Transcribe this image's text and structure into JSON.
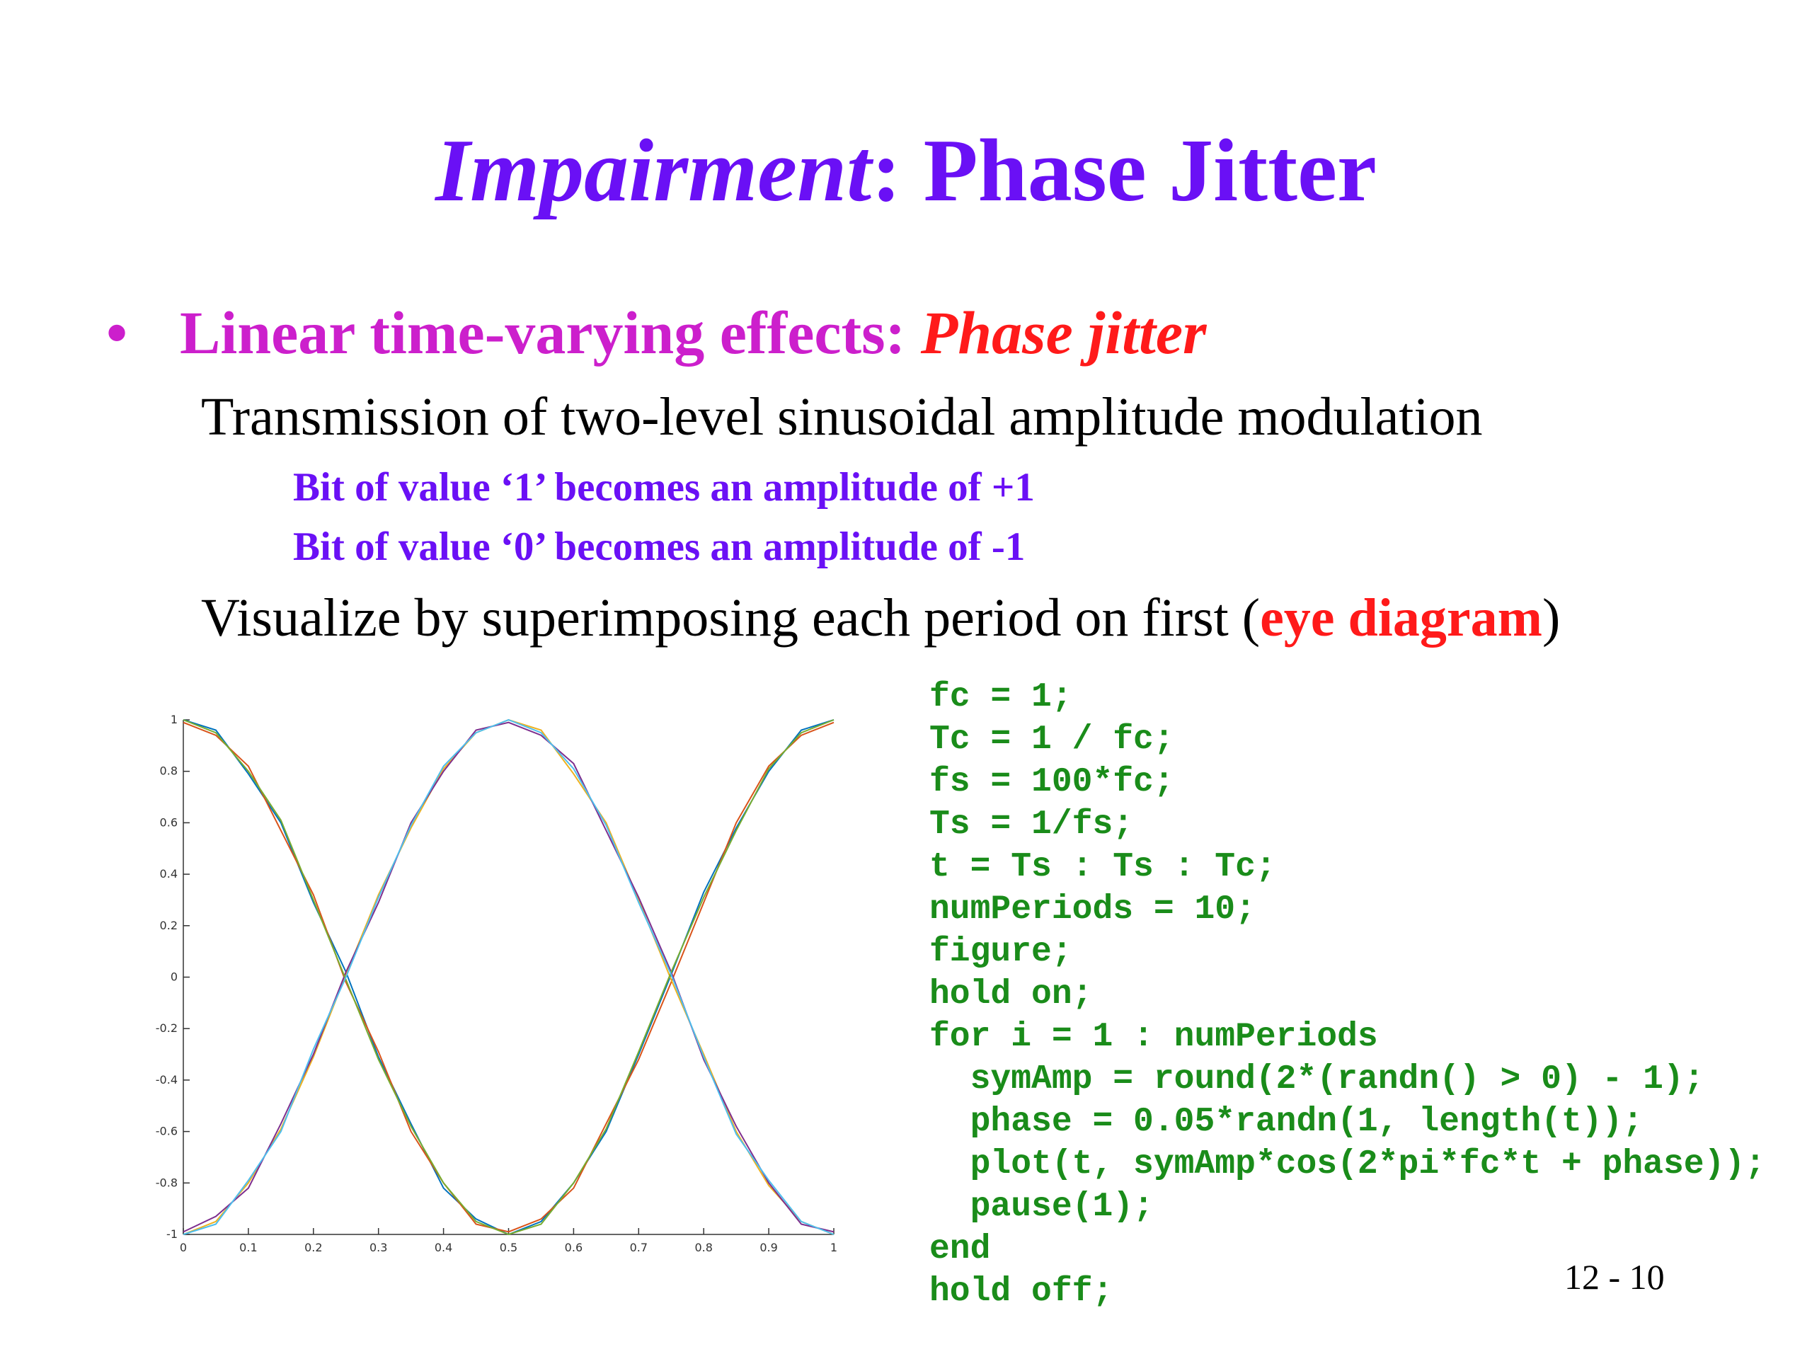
{
  "slide": {
    "title": {
      "italic": "Impairment",
      "rest": ": Phase Jitter"
    },
    "bullet": {
      "marker": "•",
      "text": "Linear time-varying effects: ",
      "emphasis": "Phase jitter"
    },
    "line1": "Transmission of two-level sinusoidal amplitude modulation",
    "sub1": "Bit of value ‘1’ becomes an amplitude of +1",
    "sub2": "Bit of value ‘0’ becomes an amplitude of -1",
    "line2": {
      "before": "Visualize by superimposing each period on first (",
      "emphasis": "eye diagram",
      "after": ")"
    },
    "code": [
      "fc = 1;",
      "Tc = 1 / fc;",
      "fs = 100*fc;",
      "Ts = 1/fs;",
      "t = Ts : Ts : Tc;",
      "numPeriods = 10;",
      "figure;",
      "hold on;",
      "for i = 1 : numPeriods",
      "  symAmp = round(2*(randn() > 0) - 1);",
      "  phase = 0.05*randn(1, length(t));",
      "  plot(t, symAmp*cos(2*pi*fc*t + phase));",
      "  pause(1);",
      "end",
      "hold off;"
    ],
    "page_number": "12 - 10"
  },
  "chart_data": {
    "type": "line",
    "x": [
      0,
      0.05,
      0.1,
      0.15,
      0.2,
      0.25,
      0.3,
      0.35,
      0.4,
      0.45,
      0.5,
      0.55,
      0.6,
      0.65,
      0.7,
      0.75,
      0.8,
      0.85,
      0.9,
      0.95,
      1
    ],
    "series": [
      {
        "color": "#0072bd",
        "values": [
          1,
          0.96,
          0.79,
          0.6,
          0.29,
          0.02,
          -0.31,
          -0.57,
          -0.82,
          -0.94,
          -1,
          -0.95,
          -0.8,
          -0.6,
          -0.3,
          0.01,
          0.33,
          0.58,
          0.8,
          0.96,
          1
        ]
      },
      {
        "color": "#d95319",
        "values": [
          0.99,
          0.94,
          0.82,
          0.57,
          0.32,
          -0.02,
          -0.29,
          -0.6,
          -0.8,
          -0.96,
          -0.99,
          -0.94,
          -0.82,
          -0.57,
          -0.32,
          -0.02,
          0.29,
          0.6,
          0.82,
          0.94,
          0.99
        ]
      },
      {
        "color": "#edb120",
        "values": [
          -1,
          -0.95,
          -0.8,
          -0.59,
          -0.31,
          0.01,
          0.32,
          0.58,
          0.81,
          0.95,
          1,
          0.96,
          0.79,
          0.6,
          0.3,
          -0.01,
          -0.3,
          -0.6,
          -0.81,
          -0.95,
          -1
        ]
      },
      {
        "color": "#7e2f8e",
        "values": [
          -0.99,
          -0.93,
          -0.82,
          -0.57,
          -0.3,
          0.02,
          0.29,
          0.6,
          0.8,
          0.96,
          0.99,
          0.94,
          0.83,
          0.57,
          0.31,
          0.02,
          -0.32,
          -0.58,
          -0.8,
          -0.96,
          -0.99
        ]
      },
      {
        "color": "#77ac30",
        "values": [
          1,
          0.95,
          0.8,
          0.61,
          0.3,
          -0.01,
          -0.32,
          -0.58,
          -0.8,
          -0.95,
          -1,
          -0.96,
          -0.8,
          -0.59,
          -0.29,
          0.02,
          0.31,
          0.57,
          0.81,
          0.95,
          1
        ]
      },
      {
        "color": "#4dbeee",
        "values": [
          -1,
          -0.96,
          -0.79,
          -0.6,
          -0.28,
          0,
          0.31,
          0.59,
          0.82,
          0.95,
          1,
          0.95,
          0.81,
          0.59,
          0.29,
          0.01,
          -0.31,
          -0.61,
          -0.79,
          -0.95,
          -1
        ]
      }
    ],
    "xlim": [
      0,
      1
    ],
    "xticks": [
      0,
      0.1,
      0.2,
      0.3,
      0.4,
      0.5,
      0.6,
      0.7,
      0.8,
      0.9,
      1
    ],
    "ylim": [
      -1,
      1
    ],
    "yticks": [
      -1,
      -0.8,
      -0.6,
      -0.4,
      -0.2,
      0,
      0.2,
      0.4,
      0.6,
      0.8,
      1
    ]
  }
}
